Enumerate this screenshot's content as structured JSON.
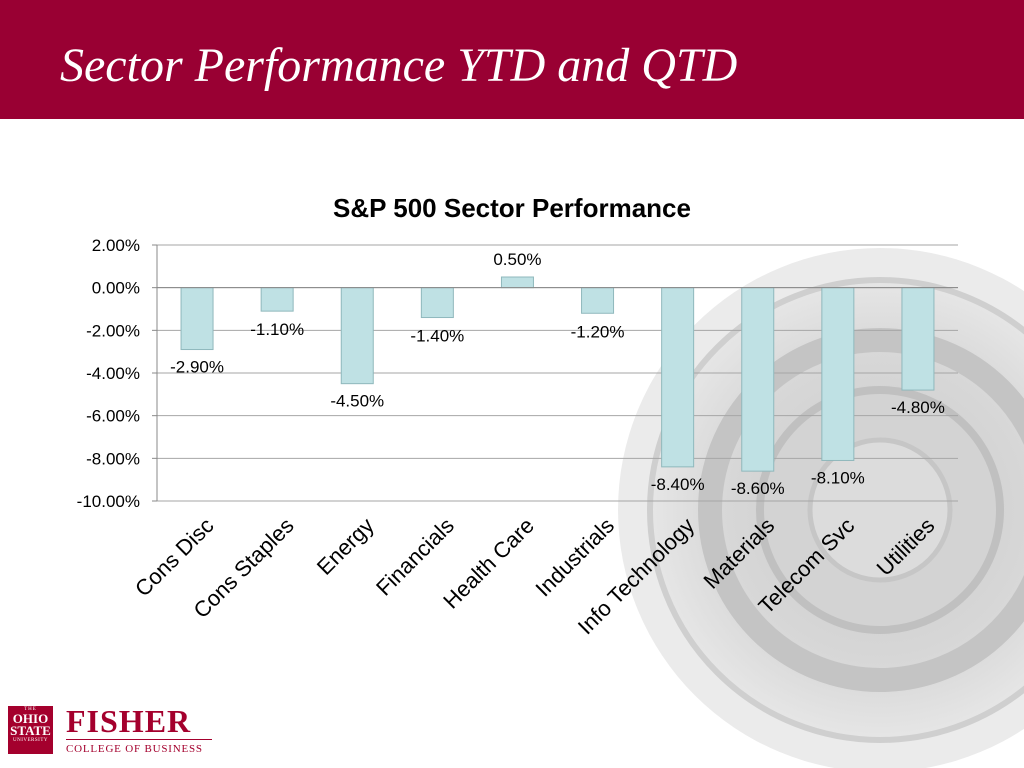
{
  "slide": {
    "title": "Sector Performance YTD and QTD"
  },
  "chart_data": {
    "type": "bar",
    "title": "S&P 500 Sector Performance",
    "categories": [
      "Cons Disc",
      "Cons Staples",
      "Energy",
      "Financials",
      "Health Care",
      "Industrials",
      "Info Technology",
      "Materials",
      "Telecom Svc",
      "Utilities"
    ],
    "values": [
      -2.9,
      -1.1,
      -4.5,
      -1.4,
      0.5,
      -1.2,
      -8.4,
      -8.6,
      -8.1,
      -4.8
    ],
    "data_labels": [
      "-2.90%",
      "-1.10%",
      "-4.50%",
      "-1.40%",
      "0.50%",
      "-1.20%",
      "-8.40%",
      "-8.60%",
      "-8.10%",
      "-4.80%"
    ],
    "yticks": [
      2,
      0,
      -2,
      -4,
      -6,
      -8,
      -10
    ],
    "ytick_labels": [
      "2.00%",
      "0.00%",
      "-2.00%",
      "-4.00%",
      "-6.00%",
      "-8.00%",
      "-10.00%"
    ],
    "ylim": [
      -10,
      2
    ],
    "xlabel": "",
    "ylabel": "",
    "grid": true,
    "legend": "none",
    "bar_color": "#bfe1e4",
    "bar_edge_color": "#8fb8bc"
  },
  "branding": {
    "osu_top": "THE",
    "osu_ohio": "OHIO",
    "osu_state": "STATE",
    "osu_university": "UNIVERSITY",
    "name": "FISHER",
    "subtitle": "COLLEGE OF BUSINESS"
  },
  "colors": {
    "header": "#990033",
    "brand": "#a4002d"
  }
}
